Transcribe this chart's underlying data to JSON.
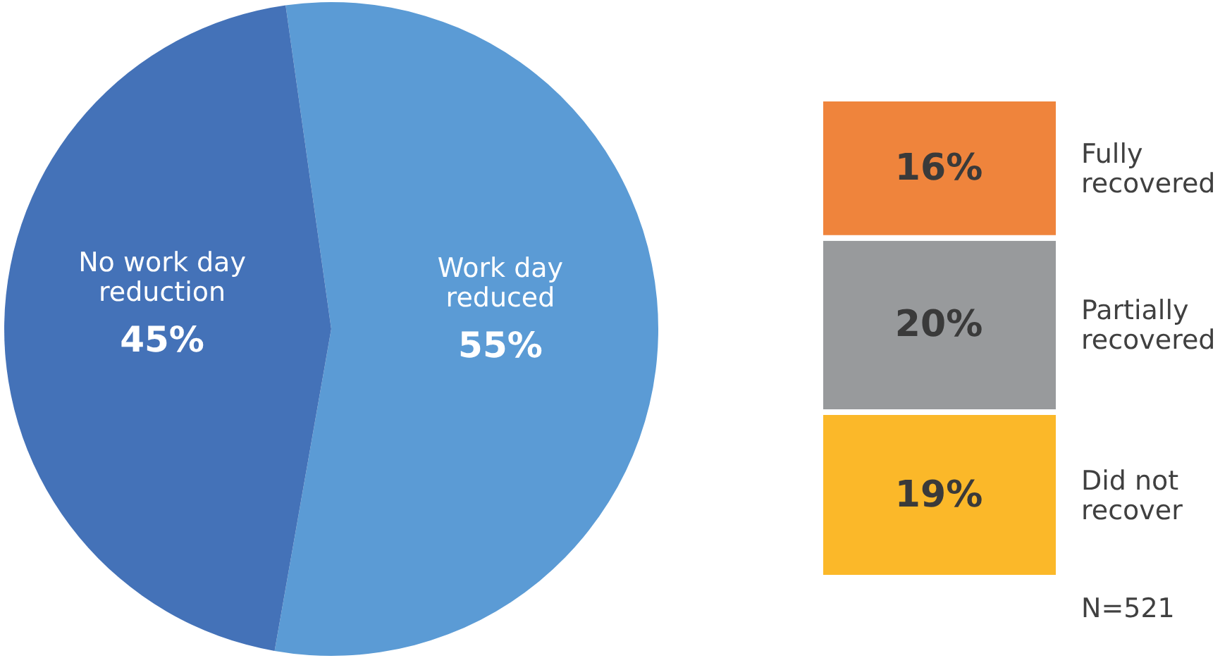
{
  "chart_data": [
    {
      "type": "pie",
      "categories": [
        "No work day reduction",
        "Work day reduced"
      ],
      "values": [
        45,
        55
      ],
      "colors": [
        "#4472b8",
        "#5b9bd5"
      ],
      "value_labels": [
        "45%",
        "55%"
      ]
    },
    {
      "type": "bar",
      "stacked": true,
      "tick_labels": false,
      "categories": [
        null
      ],
      "annotations": [
        "N=521"
      ],
      "series": [
        {
          "name": "Did not recover",
          "color": "#fbb829",
          "values": [
            19
          ],
          "value_labels": [
            "19%"
          ]
        },
        {
          "name": "Partially recovered",
          "color": "#989a9c",
          "values": [
            20
          ],
          "value_labels": [
            "20%"
          ]
        },
        {
          "name": "Fully recovered",
          "color": "#ef843c",
          "values": [
            16
          ],
          "value_labels": [
            "16%"
          ]
        }
      ]
    }
  ]
}
